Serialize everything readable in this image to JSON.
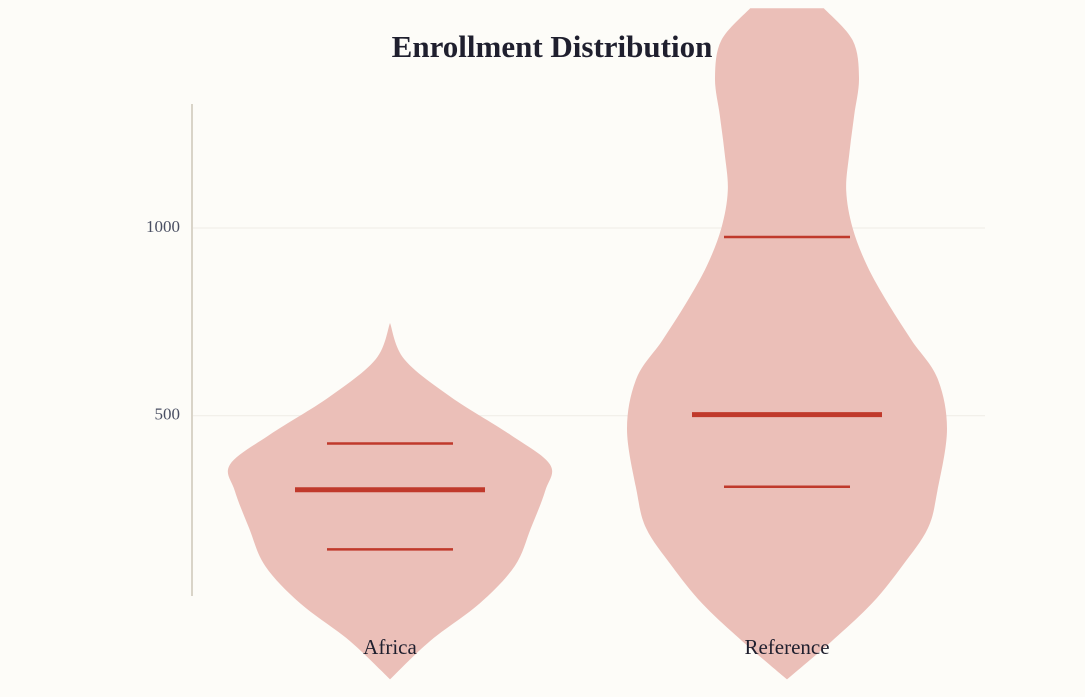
{
  "chart_data": {
    "type": "violin",
    "title": "Enrollment Distribution",
    "categories": [
      "Africa",
      "Reference"
    ],
    "color": "#ebbfb8",
    "line_color": "#c0392b",
    "violins": [
      {
        "min": -202,
        "q1": 144,
        "median": 303,
        "q3": 426,
        "max": 747,
        "kde": {
          "y": [
            -202,
            -100,
            0,
            100,
            200,
            300,
            370,
            450,
            550,
            650,
            747
          ],
          "density": [
            0,
            0.25,
            0.56,
            0.78,
            0.88,
            0.97,
            1,
            0.75,
            0.38,
            0.09,
            0
          ]
        }
      },
      {
        "min": -202,
        "q1": 311,
        "median": 503,
        "q3": 976,
        "max": 1585,
        "kde": {
          "y": [
            -202,
            -100,
            0,
            100,
            200,
            300,
            465,
            600,
            700,
            800,
            900,
            1000,
            1100,
            1200,
            1300,
            1400,
            1500,
            1585
          ],
          "density": [
            0,
            0.28,
            0.53,
            0.72,
            0.88,
            0.94,
            1,
            0.94,
            0.78,
            0.63,
            0.5,
            0.41,
            0.37,
            0.39,
            0.42,
            0.45,
            0.41,
            0.23
          ]
        }
      }
    ],
    "ylim": [
      20,
      1330
    ],
    "yticks": [
      500,
      1000
    ],
    "grid": true
  }
}
